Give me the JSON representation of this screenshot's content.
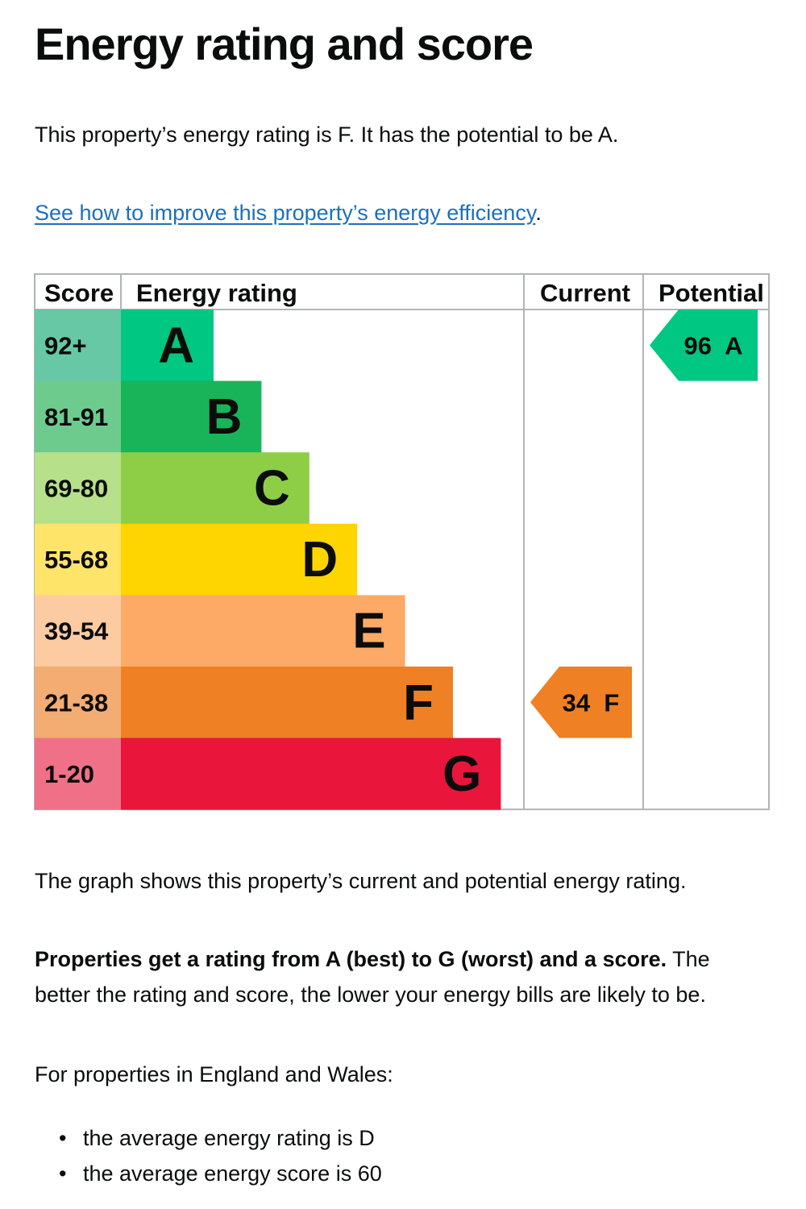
{
  "heading": "Energy rating and score",
  "summary": "This property’s energy rating is F. It has the potential to be A.",
  "improve_link": {
    "text": "See how to improve this property’s energy efficiency",
    "suffix": "."
  },
  "chart_data": {
    "type": "bar",
    "columns": {
      "score": "Score",
      "rating": "Energy rating",
      "current": "Current",
      "potential": "Potential"
    },
    "bands": [
      {
        "letter": "A",
        "score_range": "92+",
        "color": "#00c781",
        "score_bg": "#67c8a5"
      },
      {
        "letter": "B",
        "score_range": "81-91",
        "color": "#19b459",
        "score_bg": "#6ecb8e"
      },
      {
        "letter": "C",
        "score_range": "69-80",
        "color": "#8dce46",
        "score_bg": "#b7e08b"
      },
      {
        "letter": "D",
        "score_range": "55-68",
        "color": "#ffd500",
        "score_bg": "#ffe46a"
      },
      {
        "letter": "E",
        "score_range": "39-54",
        "color": "#fcaa65",
        "score_bg": "#fdcba1"
      },
      {
        "letter": "F",
        "score_range": "21-38",
        "color": "#ef8023",
        "score_bg": "#f3ac72"
      },
      {
        "letter": "G",
        "score_range": "1-20",
        "color": "#e9153b",
        "score_bg": "#f07088"
      }
    ],
    "current": {
      "score": 34,
      "rating": "F",
      "label": "34  F",
      "color": "#ef8023"
    },
    "potential": {
      "score": 96,
      "rating": "A",
      "label": "96  A",
      "color": "#00c781"
    }
  },
  "graph_text": "The graph shows this property’s current and potential energy rating.",
  "properties": {
    "bold": "Properties get a rating from A (best) to G (worst) and a score.",
    "rest": " The better the rating and score, the lower your energy bills are likely to be."
  },
  "england_wales": "For properties in England and Wales:",
  "averages": [
    "the average energy rating is D",
    "the average energy score is 60"
  ]
}
